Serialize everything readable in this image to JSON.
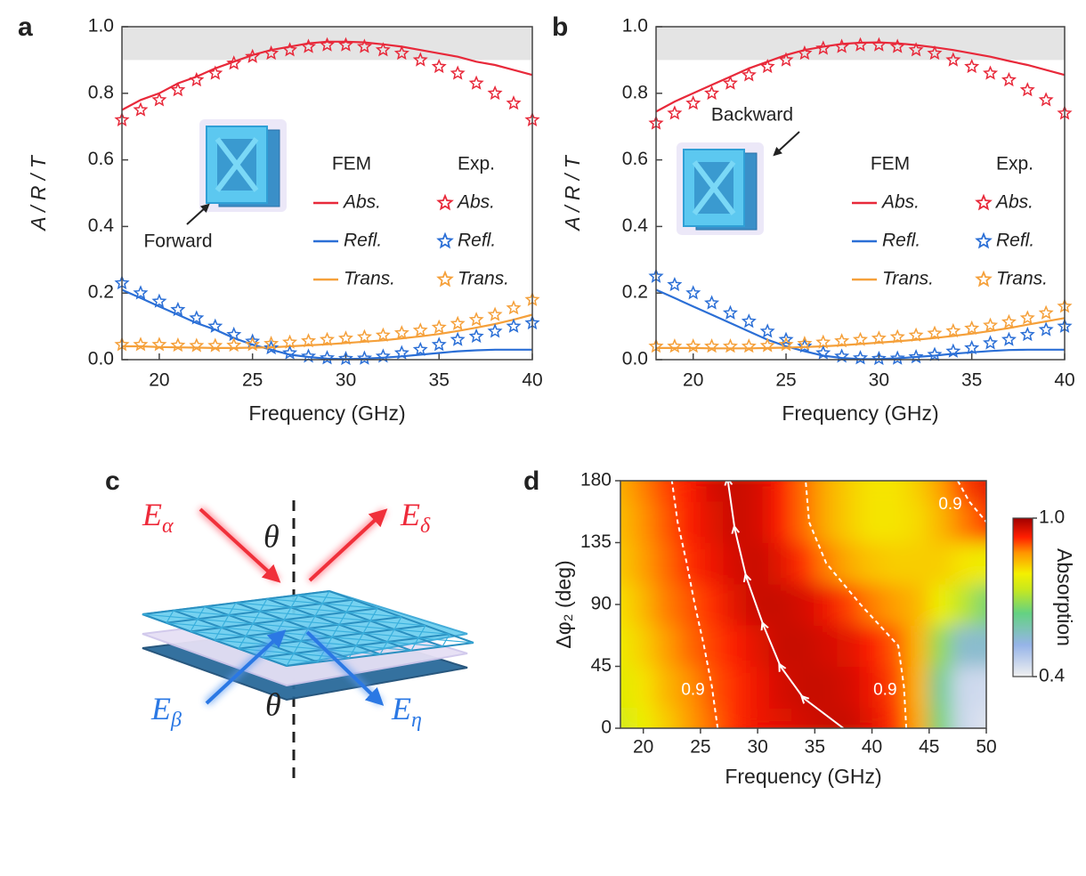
{
  "chart_data": [
    {
      "type": "line",
      "panel": "a",
      "xlabel": "Frequency (GHz)",
      "ylabel": "A / R / T",
      "annotation": "Forward",
      "xlim": [
        18,
        40
      ],
      "xticks": [
        20,
        25,
        30,
        35,
        40
      ],
      "ylim": [
        0,
        1
      ],
      "yticks": [
        {
          "value": 0,
          "label": "0.0"
        },
        0.2,
        0.4,
        0.6,
        0.8,
        {
          "value": 1,
          "label": "1.0"
        }
      ],
      "shaded_range": [
        0.9,
        1.0
      ],
      "legend_titles": [
        "FEM",
        "Exp."
      ],
      "x": [
        18,
        19,
        20,
        21,
        22,
        23,
        24,
        25,
        26,
        27,
        28,
        29,
        30,
        31,
        32,
        33,
        34,
        35,
        36,
        37,
        38,
        39,
        40
      ],
      "series": [
        {
          "name": "Abs.",
          "style": "line",
          "color": "#e8293a",
          "values": [
            0.75,
            0.78,
            0.8,
            0.83,
            0.85,
            0.875,
            0.895,
            0.915,
            0.93,
            0.94,
            0.95,
            0.955,
            0.955,
            0.953,
            0.947,
            0.94,
            0.93,
            0.92,
            0.91,
            0.895,
            0.885,
            0.87,
            0.855
          ]
        },
        {
          "name": "Refl.",
          "style": "line",
          "color": "#2b6fd6",
          "values": [
            0.21,
            0.185,
            0.16,
            0.135,
            0.11,
            0.09,
            0.065,
            0.045,
            0.03,
            0.015,
            0.008,
            0.003,
            0.002,
            0.003,
            0.006,
            0.01,
            0.015,
            0.02,
            0.025,
            0.028,
            0.03,
            0.03,
            0.03
          ]
        },
        {
          "name": "Trans.",
          "style": "line",
          "color": "#f5a03a",
          "values": [
            0.04,
            0.04,
            0.038,
            0.037,
            0.036,
            0.035,
            0.035,
            0.036,
            0.037,
            0.04,
            0.043,
            0.046,
            0.05,
            0.054,
            0.058,
            0.064,
            0.07,
            0.077,
            0.086,
            0.096,
            0.107,
            0.12,
            0.135
          ]
        },
        {
          "name": "Abs.",
          "style": "star",
          "color": "#e8293a",
          "values": [
            0.72,
            0.75,
            0.78,
            0.81,
            0.84,
            0.86,
            0.89,
            0.91,
            0.92,
            0.93,
            0.94,
            0.945,
            0.945,
            0.94,
            0.93,
            0.92,
            0.9,
            0.88,
            0.86,
            0.83,
            0.8,
            0.77,
            0.72
          ]
        },
        {
          "name": "Refl.",
          "style": "star",
          "color": "#2b6fd6",
          "values": [
            0.23,
            0.2,
            0.175,
            0.15,
            0.125,
            0.1,
            0.075,
            0.055,
            0.035,
            0.02,
            0.01,
            0.005,
            0.003,
            0.004,
            0.01,
            0.02,
            0.03,
            0.045,
            0.06,
            0.07,
            0.085,
            0.1,
            0.11
          ]
        },
        {
          "name": "Trans.",
          "style": "star",
          "color": "#f5a03a",
          "values": [
            0.045,
            0.045,
            0.045,
            0.043,
            0.042,
            0.042,
            0.043,
            0.045,
            0.048,
            0.052,
            0.056,
            0.06,
            0.064,
            0.068,
            0.073,
            0.08,
            0.088,
            0.097,
            0.108,
            0.12,
            0.135,
            0.155,
            0.18
          ]
        }
      ]
    },
    {
      "type": "line",
      "panel": "b",
      "xlabel": "Frequency (GHz)",
      "ylabel": "A / R / T",
      "annotation": "Backward",
      "xlim": [
        18,
        40
      ],
      "xticks": [
        20,
        25,
        30,
        35,
        40
      ],
      "ylim": [
        0,
        1
      ],
      "yticks": [
        {
          "value": 0,
          "label": "0.0"
        },
        0.2,
        0.4,
        0.6,
        0.8,
        {
          "value": 1,
          "label": "1.0"
        }
      ],
      "shaded_range": [
        0.9,
        1.0
      ],
      "legend_titles": [
        "FEM",
        "Exp."
      ],
      "x": [
        18,
        19,
        20,
        21,
        22,
        23,
        24,
        25,
        26,
        27,
        28,
        29,
        30,
        31,
        32,
        33,
        34,
        35,
        36,
        37,
        38,
        39,
        40
      ],
      "series": [
        {
          "name": "Abs.",
          "style": "line",
          "color": "#e8293a",
          "values": [
            0.745,
            0.775,
            0.8,
            0.825,
            0.85,
            0.875,
            0.895,
            0.915,
            0.93,
            0.94,
            0.948,
            0.952,
            0.953,
            0.95,
            0.945,
            0.938,
            0.93,
            0.92,
            0.91,
            0.897,
            0.885,
            0.87,
            0.855
          ]
        },
        {
          "name": "Refl.",
          "style": "line",
          "color": "#2b6fd6",
          "values": [
            0.21,
            0.185,
            0.16,
            0.135,
            0.11,
            0.085,
            0.06,
            0.04,
            0.025,
            0.012,
            0.005,
            0.002,
            0.002,
            0.004,
            0.008,
            0.012,
            0.018,
            0.022,
            0.026,
            0.029,
            0.03,
            0.03,
            0.03
          ]
        },
        {
          "name": "Trans.",
          "style": "line",
          "color": "#f5a03a",
          "values": [
            0.035,
            0.035,
            0.035,
            0.034,
            0.034,
            0.034,
            0.035,
            0.036,
            0.038,
            0.04,
            0.043,
            0.047,
            0.051,
            0.055,
            0.06,
            0.065,
            0.071,
            0.078,
            0.086,
            0.095,
            0.105,
            0.115,
            0.125
          ]
        },
        {
          "name": "Abs.",
          "style": "star",
          "color": "#e8293a",
          "values": [
            0.71,
            0.74,
            0.77,
            0.8,
            0.83,
            0.855,
            0.88,
            0.9,
            0.92,
            0.935,
            0.94,
            0.945,
            0.945,
            0.94,
            0.93,
            0.92,
            0.9,
            0.88,
            0.86,
            0.84,
            0.81,
            0.78,
            0.74
          ]
        },
        {
          "name": "Refl.",
          "style": "star",
          "color": "#2b6fd6",
          "values": [
            0.25,
            0.225,
            0.2,
            0.17,
            0.14,
            0.115,
            0.085,
            0.06,
            0.04,
            0.02,
            0.01,
            0.005,
            0.003,
            0.004,
            0.008,
            0.015,
            0.025,
            0.035,
            0.05,
            0.06,
            0.075,
            0.09,
            0.1
          ]
        },
        {
          "name": "Trans.",
          "style": "star",
          "color": "#f5a03a",
          "values": [
            0.04,
            0.04,
            0.04,
            0.04,
            0.04,
            0.04,
            0.042,
            0.045,
            0.048,
            0.052,
            0.056,
            0.06,
            0.064,
            0.068,
            0.073,
            0.079,
            0.086,
            0.094,
            0.103,
            0.113,
            0.125,
            0.14,
            0.16
          ]
        }
      ]
    },
    {
      "type": "heatmap",
      "panel": "d",
      "xlabel": "Frequency (GHz)",
      "ylabel": "Δφ₂ (deg)",
      "xlim": [
        18,
        50
      ],
      "xticks": [
        20,
        25,
        30,
        35,
        40,
        45,
        50
      ],
      "ylim": [
        0,
        180
      ],
      "yticks": [
        0,
        45,
        90,
        135,
        180
      ],
      "x": [
        18,
        20,
        22,
        24,
        26,
        28,
        30,
        32,
        34,
        36,
        38,
        40,
        42,
        44,
        46,
        48,
        50
      ],
      "y": [
        0,
        30,
        60,
        90,
        120,
        150,
        180
      ],
      "z": [
        [
          0.74,
          0.78,
          0.82,
          0.86,
          0.89,
          0.92,
          0.94,
          0.95,
          0.96,
          0.97,
          0.97,
          0.95,
          0.92,
          0.85,
          0.65,
          0.45,
          0.42
        ],
        [
          0.76,
          0.8,
          0.84,
          0.87,
          0.9,
          0.92,
          0.94,
          0.96,
          0.97,
          0.97,
          0.96,
          0.94,
          0.91,
          0.84,
          0.62,
          0.45,
          0.44
        ],
        [
          0.78,
          0.82,
          0.86,
          0.89,
          0.91,
          0.93,
          0.95,
          0.97,
          0.97,
          0.96,
          0.95,
          0.93,
          0.9,
          0.84,
          0.68,
          0.55,
          0.55
        ],
        [
          0.8,
          0.84,
          0.88,
          0.9,
          0.92,
          0.95,
          0.97,
          0.97,
          0.96,
          0.94,
          0.91,
          0.88,
          0.86,
          0.84,
          0.78,
          0.72,
          0.65
        ],
        [
          0.82,
          0.86,
          0.89,
          0.92,
          0.94,
          0.96,
          0.97,
          0.95,
          0.92,
          0.88,
          0.85,
          0.83,
          0.82,
          0.82,
          0.82,
          0.8,
          0.78
        ],
        [
          0.83,
          0.87,
          0.9,
          0.93,
          0.95,
          0.97,
          0.96,
          0.93,
          0.89,
          0.85,
          0.82,
          0.8,
          0.8,
          0.81,
          0.84,
          0.88,
          0.92
        ],
        [
          0.84,
          0.88,
          0.91,
          0.93,
          0.96,
          0.97,
          0.96,
          0.93,
          0.89,
          0.85,
          0.82,
          0.8,
          0.8,
          0.82,
          0.86,
          0.91,
          0.95
        ]
      ],
      "contours": [
        {
          "label": "0.9",
          "x": [
            26.5,
            26,
            25.3,
            24.5,
            23.8,
            23,
            22.5
          ],
          "y": [
            0,
            30,
            60,
            90,
            120,
            150,
            180
          ]
        },
        {
          "label": "0.9",
          "x": [
            43,
            42.8,
            42.3,
            39,
            36,
            34.5,
            34.2
          ],
          "y": [
            0,
            30,
            60,
            90,
            120,
            150,
            180
          ]
        },
        {
          "label": "0.9",
          "x": [
            47.5,
            48.5,
            50
          ],
          "y": [
            180,
            165,
            150
          ]
        }
      ],
      "ridge": {
        "x": [
          37.5,
          34,
          32,
          30.5,
          29,
          28,
          27.4
        ],
        "y": [
          0,
          22,
          45,
          75,
          110,
          145,
          180
        ]
      },
      "colorbar": {
        "label": "Absorption",
        "lim": [
          0.4,
          1
        ],
        "ticks": [
          0.4,
          {
            "value": 1,
            "label": "1.0"
          }
        ]
      }
    }
  ],
  "diagram": {
    "panel": "c",
    "labels": [
      {
        "symbol": "E",
        "subscript": "α"
      },
      {
        "symbol": "E",
        "subscript": "δ"
      },
      {
        "symbol": "E",
        "subscript": "β"
      },
      {
        "symbol": "E",
        "subscript": "η"
      }
    ],
    "angle_labels": [
      "θ",
      "θ"
    ]
  }
}
